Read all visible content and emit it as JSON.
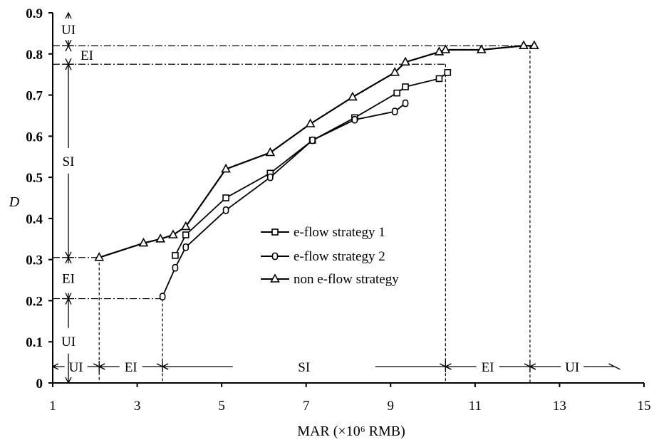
{
  "chart_data": {
    "type": "line",
    "xlabel": "MAR (×10⁶ RMB)",
    "ylabel": "D",
    "xlim": [
      1,
      15
    ],
    "ylim": [
      0,
      0.9
    ],
    "x_ticks": [
      1,
      3,
      5,
      7,
      9,
      11,
      13,
      15
    ],
    "x_tick_labels": [
      "1",
      "3",
      "5",
      "7",
      "9",
      "11",
      "13",
      "15"
    ],
    "y_ticks": [
      0,
      0.1,
      0.2,
      0.3,
      0.4,
      0.5,
      0.6,
      0.7,
      0.8,
      0.9
    ],
    "y_tick_labels": [
      "0",
      "0.1",
      "0.2",
      "0.3",
      "0.4",
      "0.5",
      "0.6",
      "0.7",
      "0.8",
      "0.9"
    ],
    "grid": false,
    "legend_position": "center-right",
    "series": [
      {
        "name": "e-flow strategy 1",
        "marker": "square",
        "points": [
          [
            3.9,
            0.31
          ],
          [
            4.15,
            0.36
          ],
          [
            5.1,
            0.45
          ],
          [
            6.15,
            0.51
          ],
          [
            7.15,
            0.59
          ],
          [
            8.15,
            0.645
          ],
          [
            9.15,
            0.705
          ],
          [
            9.35,
            0.72
          ],
          [
            10.15,
            0.74
          ],
          [
            10.35,
            0.755
          ]
        ]
      },
      {
        "name": "e-flow strategy 2",
        "marker": "circle",
        "points": [
          [
            3.6,
            0.21
          ],
          [
            3.9,
            0.28
          ],
          [
            4.15,
            0.33
          ],
          [
            5.1,
            0.42
          ],
          [
            6.15,
            0.5
          ],
          [
            7.15,
            0.59
          ],
          [
            8.15,
            0.64
          ],
          [
            9.1,
            0.66
          ],
          [
            9.35,
            0.68
          ]
        ]
      },
      {
        "name": "non e-flow strategy",
        "marker": "triangle",
        "points": [
          [
            2.1,
            0.305
          ],
          [
            3.15,
            0.34
          ],
          [
            3.55,
            0.35
          ],
          [
            3.85,
            0.36
          ],
          [
            4.15,
            0.38
          ],
          [
            5.1,
            0.52
          ],
          [
            6.15,
            0.56
          ],
          [
            7.1,
            0.63
          ],
          [
            8.1,
            0.695
          ],
          [
            9.1,
            0.755
          ],
          [
            9.35,
            0.78
          ],
          [
            10.15,
            0.805
          ],
          [
            10.3,
            0.81
          ],
          [
            11.15,
            0.81
          ],
          [
            12.15,
            0.82
          ],
          [
            12.4,
            0.82
          ]
        ]
      }
    ],
    "annotations": {
      "y_axis_regions": [
        {
          "label": "UI",
          "from": 0.82,
          "to": 0.9
        },
        {
          "label": "EI",
          "from": 0.775,
          "to": 0.82
        },
        {
          "label": "SI",
          "from": 0.305,
          "to": 0.775
        },
        {
          "label": "EI",
          "from": 0.205,
          "to": 0.305
        },
        {
          "label": "UI",
          "from": 0.0,
          "to": 0.205
        }
      ],
      "x_axis_regions": [
        {
          "label": "UI",
          "from": 1.0,
          "to": 2.1
        },
        {
          "label": "EI",
          "from": 2.1,
          "to": 3.6
        },
        {
          "label": "SI",
          "from": 3.6,
          "to": 10.3
        },
        {
          "label": "EI",
          "from": 10.3,
          "to": 12.3
        },
        {
          "label": "UI",
          "from": 12.3,
          "to": 14.3
        }
      ],
      "horizontal_guides": [
        0.82,
        0.775,
        0.305,
        0.205
      ],
      "vertical_guides": [
        2.1,
        3.6,
        10.3,
        12.3
      ]
    }
  }
}
